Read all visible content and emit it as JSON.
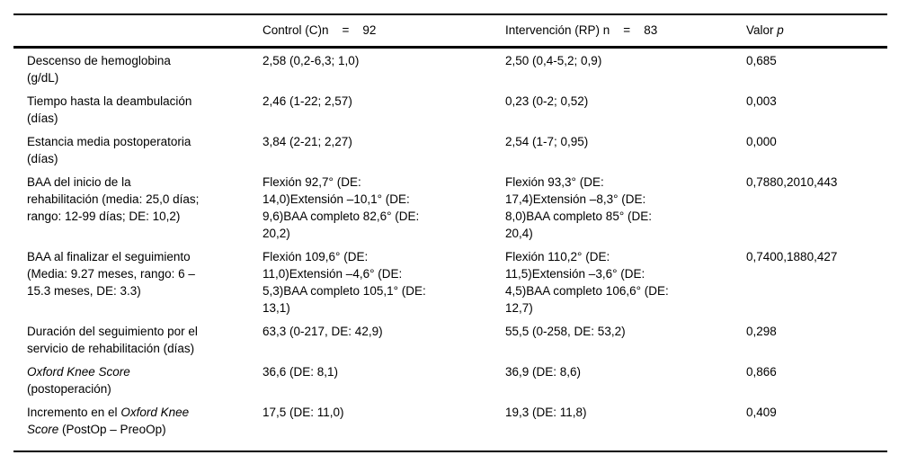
{
  "page": {
    "background_color": "#ffffff",
    "text_color": "#000000",
    "rule_color": "#000000"
  },
  "table": {
    "headers": [
      {
        "key": "row-label",
        "segments": [
          {
            "t": "",
            "i": false
          }
        ]
      },
      {
        "key": "control",
        "segments": [
          {
            "t": "Control (C)n    =    92",
            "i": false
          }
        ]
      },
      {
        "key": "intervention",
        "segments": [
          {
            "t": "Intervención (RP) n    =    83",
            "i": false
          }
        ]
      },
      {
        "key": "p-value",
        "segments": [
          {
            "t": "Valor ",
            "i": false
          },
          {
            "t": "p",
            "i": true
          }
        ]
      }
    ],
    "rows": [
      {
        "label": [
          {
            "t": "Descenso de hemoglobina\n(g/dL)",
            "i": false
          }
        ],
        "control": [
          {
            "t": "2,58 (0,2-6,3; 1,0)",
            "i": false
          }
        ],
        "intervention": [
          {
            "t": "2,50 (0,4-5,2; 0,9)",
            "i": false
          }
        ],
        "p": [
          {
            "t": "0,685",
            "i": false
          }
        ]
      },
      {
        "label": [
          {
            "t": "Tiempo hasta la deambulación\n(días)",
            "i": false
          }
        ],
        "control": [
          {
            "t": "2,46 (1-22; 2,57)",
            "i": false
          }
        ],
        "intervention": [
          {
            "t": "0,23 (0-2; 0,52)",
            "i": false
          }
        ],
        "p": [
          {
            "t": "0,003",
            "i": false
          }
        ]
      },
      {
        "label": [
          {
            "t": "Estancia media postoperatoria\n(días)",
            "i": false
          }
        ],
        "control": [
          {
            "t": "3,84 (2-21; 2,27)",
            "i": false
          }
        ],
        "intervention": [
          {
            "t": "2,54 (1-7; 0,95)",
            "i": false
          }
        ],
        "p": [
          {
            "t": "0,000",
            "i": false
          }
        ]
      },
      {
        "label": [
          {
            "t": "BAA del inicio de la\nrehabilitación (media: 25,0 días;\nrango: 12-99 días; DE: 10,2)",
            "i": false
          }
        ],
        "control": [
          {
            "t": "Flexión 92,7° (DE:\n14,0)Extensión –10,1° (DE:\n9,6)BAA completo 82,6° (DE:\n20,2)",
            "i": false
          }
        ],
        "intervention": [
          {
            "t": "Flexión 93,3° (DE:\n17,4)Extensión –8,3° (DE:\n8,0)BAA completo 85° (DE:\n20,4)",
            "i": false
          }
        ],
        "p": [
          {
            "t": "0,7880,2010,443",
            "i": false
          }
        ]
      },
      {
        "label": [
          {
            "t": "BAA al finalizar el seguimiento\n(Media: 9.27 meses, rango: 6 –\n15.3 meses, DE: 3.3)",
            "i": false
          }
        ],
        "control": [
          {
            "t": "Flexión 109,6° (DE:\n11,0)Extensión –4,6° (DE:\n5,3)BAA completo 105,1° (DE:\n13,1)",
            "i": false
          }
        ],
        "intervention": [
          {
            "t": "Flexión 110,2° (DE:\n11,5)Extensión –3,6° (DE:\n4,5)BAA completo 106,6° (DE:\n12,7)",
            "i": false
          }
        ],
        "p": [
          {
            "t": "0,7400,1880,427",
            "i": false
          }
        ]
      },
      {
        "label": [
          {
            "t": "Duración del seguimiento por el\nservicio de rehabilitación (días)",
            "i": false
          }
        ],
        "control": [
          {
            "t": "63,3 (0-217, DE: 42,9)",
            "i": false
          }
        ],
        "intervention": [
          {
            "t": "55,5 (0-258, DE: 53,2)",
            "i": false
          }
        ],
        "p": [
          {
            "t": "0,298",
            "i": false
          }
        ]
      },
      {
        "label": [
          {
            "t": "Oxford Knee Score",
            "i": true
          },
          {
            "t": "\n(postoperación)",
            "i": false
          }
        ],
        "control": [
          {
            "t": "36,6 (DE: 8,1)",
            "i": false
          }
        ],
        "intervention": [
          {
            "t": "36,9 (DE: 8,6)",
            "i": false
          }
        ],
        "p": [
          {
            "t": "0,866",
            "i": false
          }
        ]
      },
      {
        "label": [
          {
            "t": "Incremento en el ",
            "i": false
          },
          {
            "t": "Oxford Knee\nScore",
            "i": true
          },
          {
            "t": " (PostOp – PreoOp)",
            "i": false
          }
        ],
        "control": [
          {
            "t": "17,5 (DE: 11,0)",
            "i": false
          }
        ],
        "intervention": [
          {
            "t": "19,3 (DE: 11,8)",
            "i": false
          }
        ],
        "p": [
          {
            "t": "0,409",
            "i": false
          }
        ]
      }
    ]
  }
}
